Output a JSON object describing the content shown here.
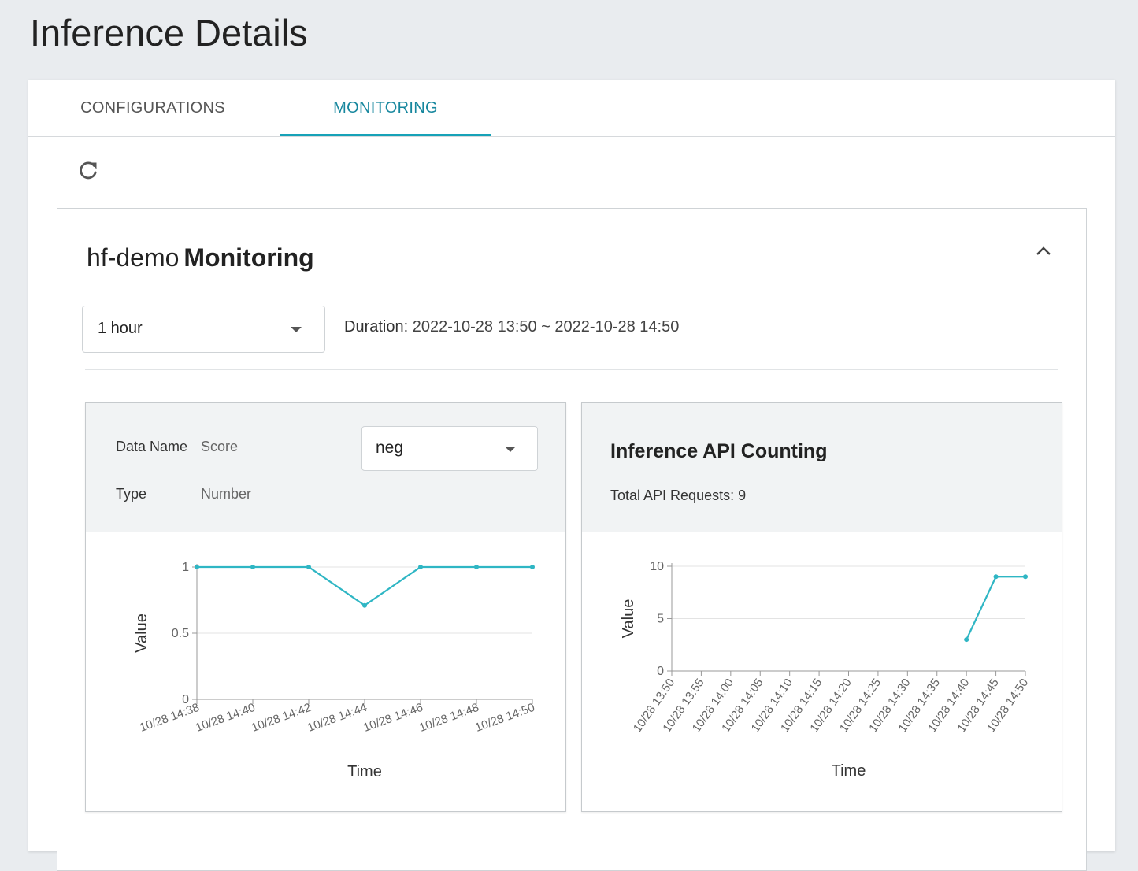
{
  "page": {
    "title": "Inference Details"
  },
  "tabs": [
    {
      "label": "CONFIGURATIONS",
      "active": false
    },
    {
      "label": "MONITORING",
      "active": true
    }
  ],
  "toolbar": {
    "refresh_icon": "refresh-icon"
  },
  "monitoring": {
    "model_name": "hf-demo",
    "title_suffix": "Monitoring",
    "collapse_icon": "chevron-up-icon",
    "range_select": {
      "value": "1 hour"
    },
    "duration_label": "Duration:",
    "duration_value": "2022-10-28 13:50 ~ 2022-10-28 14:50"
  },
  "score_panel": {
    "data_name_label": "Data Name",
    "data_name_value": "Score",
    "type_label": "Type",
    "type_value": "Number",
    "select_value": "neg"
  },
  "api_panel": {
    "title": "Inference API Counting",
    "total_label": "Total API Requests:",
    "total_value": "9"
  },
  "colors": {
    "accent": "#17a2b8",
    "line": "#2fb6c4"
  },
  "chart_data": [
    {
      "type": "line",
      "title": "",
      "xlabel": "Time",
      "ylabel": "Value",
      "ylim": [
        0,
        1
      ],
      "yticks": [
        "0",
        "0.5",
        "1"
      ],
      "categories": [
        "10/28 14:38",
        "10/28 14:40",
        "10/28 14:42",
        "10/28 14:44",
        "10/28 14:46",
        "10/28 14:48",
        "10/28 14:50"
      ],
      "values": [
        1,
        1,
        1,
        0.71,
        1,
        1,
        1
      ],
      "grid": true
    },
    {
      "type": "line",
      "title": "",
      "xlabel": "Time",
      "ylabel": "Value",
      "ylim": [
        0,
        10
      ],
      "yticks": [
        "0",
        "5",
        "10"
      ],
      "categories": [
        "10/28 13:50",
        "10/28 13:55",
        "10/28 14:00",
        "10/28 14:05",
        "10/28 14:10",
        "10/28 14:15",
        "10/28 14:20",
        "10/28 14:25",
        "10/28 14:30",
        "10/28 14:35",
        "10/28 14:40",
        "10/28 14:45",
        "10/28 14:50"
      ],
      "values": [
        null,
        null,
        null,
        null,
        null,
        null,
        null,
        null,
        null,
        null,
        3,
        9,
        9
      ],
      "grid": true
    }
  ]
}
